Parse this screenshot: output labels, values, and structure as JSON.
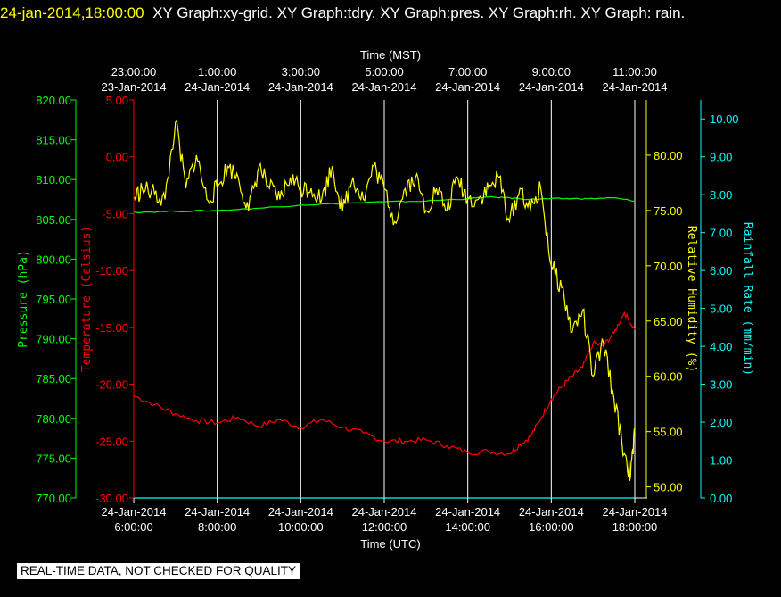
{
  "header": {
    "datetime": "24-jan-2014,18:00:00",
    "text": "XY Graph:xy-grid.  XY Graph:tdry.  XY Graph:pres.  XY Graph:rh.  XY Graph: rain."
  },
  "footer": {
    "note": "REAL-TIME DATA, NOT CHECKED FOR QUALITY"
  },
  "colors": {
    "background": "#000000",
    "grid": "#ffffff",
    "temperature": "#ff0000",
    "pressure": "#00ff00",
    "humidity": "#ffff00",
    "rain": "#00ffff"
  },
  "chart_data": {
    "type": "line",
    "xlabel_top": "Time (MST)",
    "xlabel_bottom": "Time (UTC)",
    "x_range_utc_hours": [
      6,
      18
    ],
    "top_ticks": [
      {
        "utc": 6,
        "time": "23:00:00",
        "date": "23-Jan-2014"
      },
      {
        "utc": 8,
        "time": "1:00:00",
        "date": "24-Jan-2014"
      },
      {
        "utc": 10,
        "time": "3:00:00",
        "date": "24-Jan-2014"
      },
      {
        "utc": 12,
        "time": "5:00:00",
        "date": "24-Jan-2014"
      },
      {
        "utc": 14,
        "time": "7:00:00",
        "date": "24-Jan-2014"
      },
      {
        "utc": 16,
        "time": "9:00:00",
        "date": "24-Jan-2014"
      },
      {
        "utc": 18,
        "time": "11:00:00",
        "date": "24-Jan-2014"
      }
    ],
    "bottom_ticks": [
      {
        "utc": 6,
        "date": "24-Jan-2014",
        "time": "6:00:00"
      },
      {
        "utc": 8,
        "date": "24-Jan-2014",
        "time": "8:00:00"
      },
      {
        "utc": 10,
        "date": "24-Jan-2014",
        "time": "10:00:00"
      },
      {
        "utc": 12,
        "date": "24-Jan-2014",
        "time": "12:00:00"
      },
      {
        "utc": 14,
        "date": "24-Jan-2014",
        "time": "14:00:00"
      },
      {
        "utc": 16,
        "date": "24-Jan-2014",
        "time": "16:00:00"
      },
      {
        "utc": 18,
        "date": "24-Jan-2014",
        "time": "18:00:00"
      }
    ],
    "axes": {
      "pressure": {
        "label": "Pressure (hPa)",
        "range": [
          770,
          820
        ],
        "ticks": [
          "770.00",
          "775.00",
          "780.00",
          "785.00",
          "790.00",
          "795.00",
          "800.00",
          "805.00",
          "810.00",
          "815.00",
          "820.00"
        ]
      },
      "temperature": {
        "label": "Temperature (Celsius)",
        "range": [
          -30,
          5
        ],
        "ticks": [
          "-30.00",
          "-25.00",
          "-20.00",
          "-15.00",
          "-10.00",
          "-5.00",
          "0.00",
          "5.00"
        ]
      },
      "humidity": {
        "label": "Relative Humidity (%)",
        "range": [
          49,
          85
        ],
        "ticks": [
          "50.00",
          "55.00",
          "60.00",
          "65.00",
          "70.00",
          "75.00",
          "80.00"
        ]
      },
      "rain": {
        "label": "Rainfall Rate (mm/min)",
        "range": [
          0,
          10.5
        ],
        "ticks": [
          "0.00",
          "1.00",
          "2.00",
          "3.00",
          "4.00",
          "5.00",
          "6.00",
          "7.00",
          "8.00",
          "9.00",
          "10.00"
        ]
      }
    },
    "series": [
      {
        "key": "temperature",
        "axis": "temperature",
        "x": [
          6,
          6.5,
          7,
          7.5,
          8,
          8.5,
          9,
          9.5,
          10,
          10.5,
          11,
          11.5,
          12,
          12.5,
          13,
          13.5,
          14,
          14.5,
          15,
          15.25,
          15.5,
          15.75,
          16,
          16.25,
          16.5,
          16.75,
          17,
          17.25,
          17.5,
          17.75,
          18
        ],
        "y": [
          -21,
          -21.8,
          -22.6,
          -23.2,
          -23.4,
          -22.9,
          -23.7,
          -23.1,
          -23.8,
          -23.1,
          -23.8,
          -24.3,
          -25,
          -25,
          -24.9,
          -25.4,
          -26,
          -25.9,
          -26.1,
          -25.3,
          -24.6,
          -23,
          -21.3,
          -20.2,
          -19.3,
          -18.5,
          -16.4,
          -16.6,
          -15.5,
          -13.7,
          -15.2
        ]
      },
      {
        "key": "pressure",
        "axis": "pressure",
        "x": [
          6,
          7,
          8,
          9,
          10,
          11,
          12,
          13,
          14,
          14.5,
          15,
          15.5,
          16,
          16.5,
          17,
          17.5,
          18
        ],
        "y": [
          805.9,
          806,
          806.1,
          806.4,
          806.8,
          807,
          807.2,
          807.3,
          807.6,
          807.8,
          807.7,
          807.5,
          807.6,
          807.6,
          807.6,
          807.7,
          807.3
        ]
      },
      {
        "key": "humidity",
        "axis": "humidity",
        "x": [
          6,
          6.2,
          6.5,
          6.75,
          7,
          7.25,
          7.5,
          7.75,
          8,
          8.25,
          8.5,
          8.75,
          9,
          9.25,
          9.5,
          9.75,
          10,
          10.25,
          10.5,
          10.75,
          11,
          11.25,
          11.5,
          11.75,
          12,
          12.25,
          12.5,
          12.75,
          13,
          13.25,
          13.5,
          13.75,
          14,
          14.25,
          14.5,
          14.75,
          15,
          15.25,
          15.5,
          15.75,
          16,
          16.25,
          16.5,
          16.75,
          17,
          17.25,
          17.5,
          17.75,
          17.9,
          18
        ],
        "y": [
          76,
          77,
          76.5,
          76,
          83,
          77,
          80,
          76,
          77,
          79,
          78,
          75,
          79,
          77,
          76,
          78,
          77,
          77,
          76,
          79,
          75,
          78,
          76,
          79,
          77,
          74,
          77,
          78,
          75,
          77,
          75,
          78,
          76,
          76,
          77,
          78,
          74,
          77,
          75,
          77,
          70,
          68,
          64,
          66,
          60,
          63,
          58,
          53,
          51,
          55
        ]
      },
      {
        "key": "rain",
        "axis": "rain",
        "x": [
          6,
          18
        ],
        "y": [
          0,
          0
        ]
      }
    ]
  }
}
